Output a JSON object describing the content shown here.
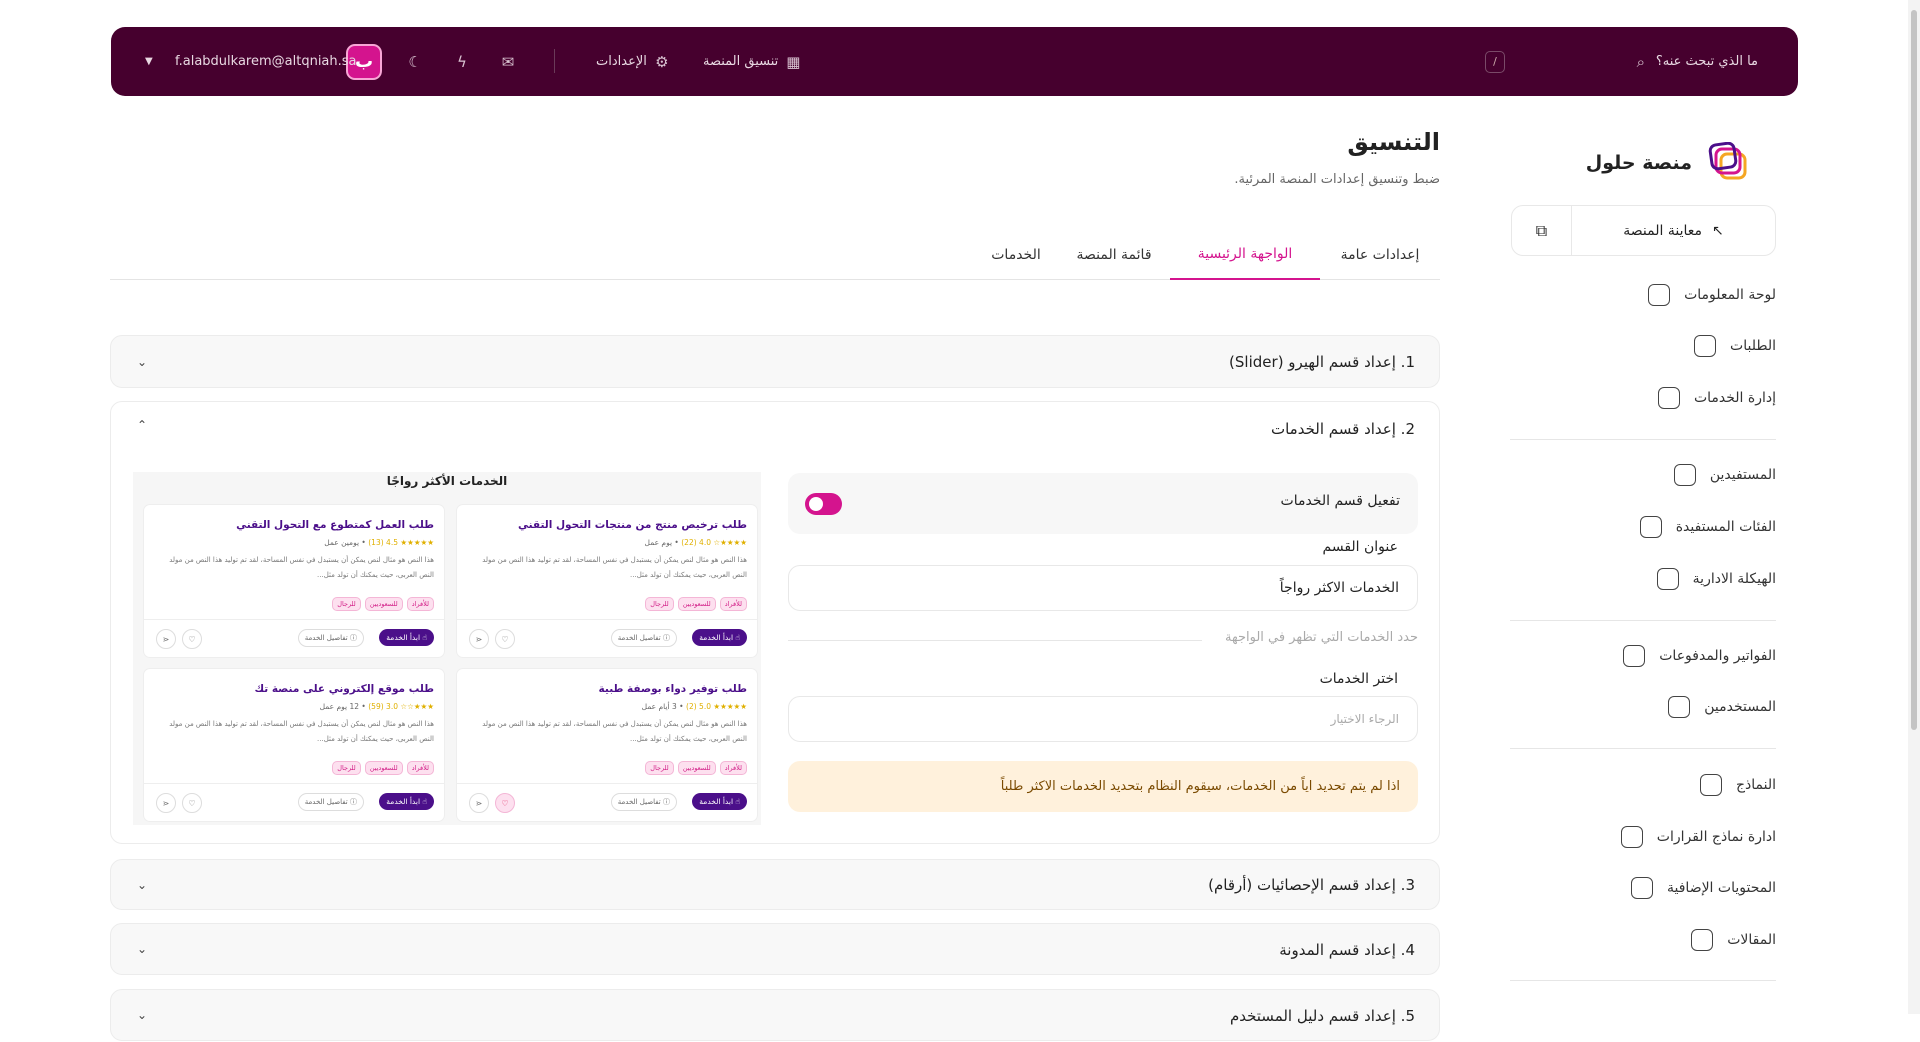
{
  "header": {
    "search_placeholder": "ما الذي تبحث عنه؟",
    "shortcut": "/",
    "nav": [
      {
        "label": "تنسيق المنصة",
        "icon": "layout-icon"
      },
      {
        "label": "الإعدادات",
        "icon": "gear-icon"
      }
    ],
    "icons": [
      "inbox-icon",
      "lightning-icon",
      "moon-icon"
    ],
    "email": "f.alabdulkarem@altqniah.sa",
    "avatar_glyph": "ب"
  },
  "sidebar": {
    "brand": "منصة حلول",
    "preview_label": "معاينة المنصة",
    "groups": [
      [
        {
          "label": "لوحة المعلومات",
          "icon": "dashboard-icon"
        },
        {
          "label": "الطلبات",
          "icon": "orders-icon"
        },
        {
          "label": "إدارة الخدمات",
          "icon": "layers-icon"
        }
      ],
      [
        {
          "label": "المستفيدين",
          "icon": "users-icon"
        },
        {
          "label": "الفئات المستفيدة",
          "icon": "tag-icon"
        },
        {
          "label": "الهيكلة الادارية",
          "icon": "hierarchy-icon"
        }
      ],
      [
        {
          "label": "الفواتير والمدفوعات",
          "icon": "invoice-icon"
        },
        {
          "label": "المستخدمين",
          "icon": "user-icon"
        }
      ],
      [
        {
          "label": "النماذج",
          "icon": "forms-icon"
        },
        {
          "label": "ادارة نماذج القرارات",
          "icon": "decisions-icon"
        },
        {
          "label": "المحتويات الإضافية",
          "icon": "content-icon"
        },
        {
          "label": "المقالات",
          "icon": "articles-icon"
        }
      ]
    ]
  },
  "page": {
    "title": "التنسيق",
    "subtitle": "ضبط وتنسيق إعدادات المنصة المرئية.",
    "tabs": [
      {
        "label": "إعدادات عامة",
        "active": false
      },
      {
        "label": "الواجهة الرئيسية",
        "active": true
      },
      {
        "label": "قائمة المنصة",
        "active": false
      },
      {
        "label": "الخدمات",
        "active": false
      }
    ]
  },
  "sections": [
    {
      "title": "1. إعداد قسم الهيرو (Slider)",
      "expanded": false
    },
    {
      "title": "2. إعداد قسم الخدمات",
      "expanded": true
    },
    {
      "title": "3. إعداد قسم الإحصائيات (أرقام)",
      "expanded": false
    },
    {
      "title": "4. إعداد قسم المدونة",
      "expanded": false
    },
    {
      "title": "5. إعداد قسم دليل المستخدم",
      "expanded": false
    }
  ],
  "services_form": {
    "toggle_label": "تفعيل قسم الخدمات",
    "toggle_on": true,
    "section_title_label": "عنوان القسم",
    "section_title_value": "الخدمات الاكثر رواجاً",
    "hint": "حدد الخدمات التي تظهر في الواجهة",
    "select_label": "اختر الخدمات",
    "select_placeholder": "الرجاء الاختيار",
    "warning": "اذا لم يتم تحديد اياً من الخدمات، سيقوم النظام بتحديد الخدمات الاكثر طلباً"
  },
  "preview": {
    "heading": "الخدمات الأكثر رواجًا",
    "desc": "هذا النص هو مثال لنص يمكن أن يستبدل في نفس المساحة، لقد تم توليد هذا النص من مولد النص العربى، حيث يمكنك أن تولد مثل...",
    "tags": [
      "للأفراد",
      "للسعوديين",
      "للرجال"
    ],
    "start_label": "ابدأ الخدمة",
    "details_label": "تفاصيل الخدمة",
    "cards": [
      {
        "title": "طلب العمل كمتطوع مع التحول التقني",
        "stars": "★★★★★",
        "rating": "4.5",
        "count": "(13)",
        "duration": "يومين عمل",
        "favorited": false
      },
      {
        "title": "طلب ترخيص منتج من منتجات التحول التقني",
        "stars": "★★★★☆",
        "rating": "4.0",
        "count": "(22)",
        "duration": "يوم عمل",
        "favorited": false
      },
      {
        "title": "طلب موقع إلكتروني على منصة تك",
        "stars": "★★★☆☆",
        "rating": "3.0",
        "count": "(59)",
        "duration": "12 يوم عمل",
        "favorited": false
      },
      {
        "title": "طلب توفير دواء بوصفة طبية",
        "stars": "★★★★★",
        "rating": "5.0",
        "count": "(2)",
        "duration": "3 أيام عمل",
        "favorited": true
      }
    ]
  },
  "colors": {
    "header_bg": "#46002e",
    "accent": "#d4148e",
    "primary": "#4b0f8a",
    "warning_bg": "#fff1dc",
    "warning_text": "#7a4a00"
  }
}
